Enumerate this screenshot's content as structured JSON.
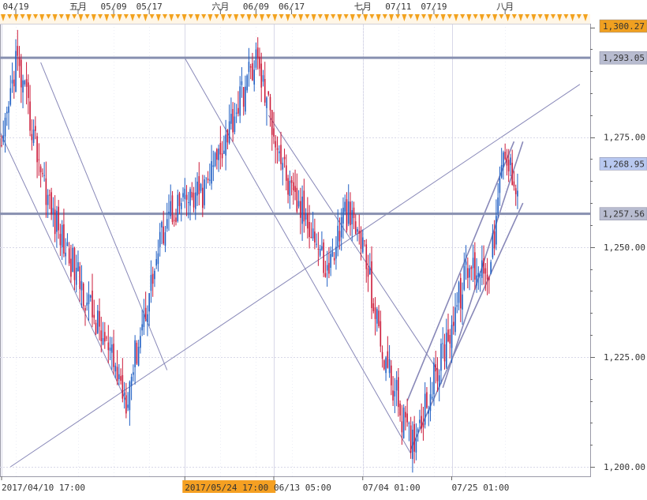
{
  "chart_data": {
    "type": "candlestick",
    "title": "",
    "ylim": [
      1200,
      1300.27
    ],
    "y_ticks": [
      1200,
      1225,
      1250,
      1275
    ],
    "y_tick_labels": [
      "1,200.00",
      "1,225.00",
      "1,250.00",
      "1,275.00"
    ],
    "top_date_labels": [
      {
        "label": "04/19",
        "bar": 8
      },
      {
        "label": "五月",
        "bar": 43
      },
      {
        "label": "05/09",
        "bar": 63
      },
      {
        "label": "05/17",
        "bar": 83
      },
      {
        "label": "六月",
        "bar": 123
      },
      {
        "label": "06/09",
        "bar": 143
      },
      {
        "label": "06/17",
        "bar": 163
      },
      {
        "label": "七月",
        "bar": 203
      },
      {
        "label": "07/11",
        "bar": 223
      },
      {
        "label": "07/19",
        "bar": 243
      },
      {
        "label": "八月",
        "bar": 283
      }
    ],
    "bottom_date_labels": [
      {
        "label": "2017/04/10 17:00",
        "bar": 0
      },
      {
        "label": "2017/05/24 17:00",
        "bar": 103,
        "highlight": true
      },
      {
        "label": "06/13 05:00",
        "bar": 153
      },
      {
        "label": "07/04 01:00",
        "bar": 203
      },
      {
        "label": "07/25 01:00",
        "bar": 253
      }
    ],
    "price_levels": [
      {
        "value": 1300.27,
        "label": "1,300.27",
        "color": "#f0a020",
        "line": false
      },
      {
        "value": 1293.05,
        "label": "1,293.05",
        "color": "#b8bcd0",
        "line": true
      },
      {
        "value": 1268.95,
        "label": "1,268.95",
        "color": "#b8c8f0",
        "line": false
      },
      {
        "value": 1257.56,
        "label": "1,257.56",
        "color": "#b8bcd0",
        "line": true
      }
    ],
    "key_points": [
      {
        "bar": 0,
        "price": 1270
      },
      {
        "bar": 8,
        "price": 1293
      },
      {
        "bar": 28,
        "price": 1258
      },
      {
        "bar": 70,
        "price": 1216
      },
      {
        "bar": 93,
        "price": 1258
      },
      {
        "bar": 113,
        "price": 1262
      },
      {
        "bar": 143,
        "price": 1293
      },
      {
        "bar": 163,
        "price": 1261
      },
      {
        "bar": 173,
        "price": 1256
      },
      {
        "bar": 183,
        "price": 1244
      },
      {
        "bar": 193,
        "price": 1258
      },
      {
        "bar": 203,
        "price": 1251
      },
      {
        "bar": 213,
        "price": 1228
      },
      {
        "bar": 230,
        "price": 1205
      },
      {
        "bar": 245,
        "price": 1222
      },
      {
        "bar": 262,
        "price": 1245
      },
      {
        "bar": 275,
        "price": 1246
      },
      {
        "bar": 282,
        "price": 1270
      },
      {
        "bar": 290,
        "price": 1265
      }
    ],
    "trendlines": [
      {
        "from": {
          "bar": -3,
          "price": 1278
        },
        "to": {
          "bar": 70,
          "price": 1215
        },
        "style": "channel"
      },
      {
        "from": {
          "bar": 22,
          "price": 1292
        },
        "to": {
          "bar": 93,
          "price": 1222
        },
        "style": "channel"
      },
      {
        "from": {
          "bar": 103,
          "price": 1293
        },
        "to": {
          "bar": 230,
          "price": 1203
        },
        "style": "channel"
      },
      {
        "from": {
          "bar": 150,
          "price": 1280
        },
        "to": {
          "bar": 245,
          "price": 1222
        },
        "style": "channel"
      },
      {
        "from": {
          "bar": 5,
          "price": 1200
        },
        "to": {
          "bar": 325,
          "price": 1287
        },
        "style": "support"
      },
      {
        "from": {
          "bar": 228,
          "price": 1215
        },
        "to": {
          "bar": 288,
          "price": 1274
        },
        "style": "rising"
      },
      {
        "from": {
          "bar": 230,
          "price": 1204
        },
        "to": {
          "bar": 293,
          "price": 1260
        },
        "style": "rising"
      },
      {
        "from": {
          "bar": 248,
          "price": 1218
        },
        "to": {
          "bar": 293,
          "price": 1274
        },
        "style": "rising"
      }
    ],
    "colors": {
      "up": "#1f5fc4",
      "down": "#cc1b3a",
      "grid": "#d8d8e8",
      "line": "#8888b8",
      "level": "#8890b0"
    },
    "grid": true
  }
}
